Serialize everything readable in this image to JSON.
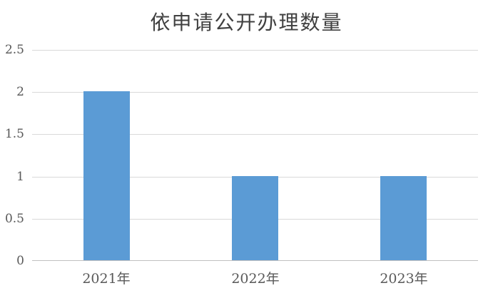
{
  "chart_data": {
    "type": "bar",
    "title": "依申请公开办理数量",
    "categories": [
      "2021年",
      "2022年",
      "2023年"
    ],
    "values": [
      2,
      1,
      1
    ],
    "xlabel": "",
    "ylabel": "",
    "ylim": [
      0,
      2.5
    ],
    "yticks": [
      0,
      0.5,
      1,
      1.5,
      2,
      2.5
    ],
    "ytick_labels": [
      "0",
      "0.5",
      "1",
      "1.5",
      "2",
      "2.5"
    ],
    "grid": "horizontal",
    "legend": "none",
    "colors": {
      "bar": "#5B9BD5",
      "gridline": "#D9D9D9",
      "axis_line": "#C0C0C0",
      "title_text": "#404040",
      "axis_text": "#595959",
      "background": "#FFFFFF"
    }
  }
}
